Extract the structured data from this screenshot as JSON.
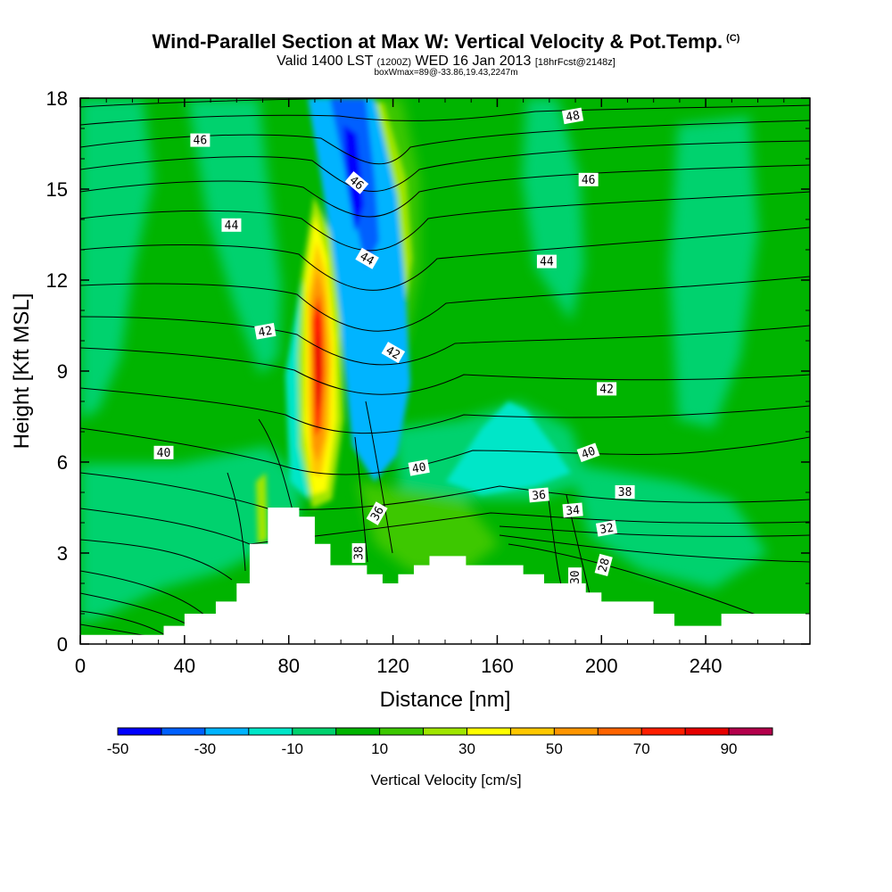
{
  "header": {
    "title": "Wind-Parallel Section at Max W: Vertical Velocity & Pot.Temp.",
    "copyright": "(C)",
    "subtitle_valid": "Valid 1400 LST",
    "subtitle_utc": "(1200Z)",
    "subtitle_date": "WED 16 Jan 2013",
    "subtitle_fcst": "[18hrFcst@2148z]",
    "subsubtitle": "boxWmax=89@-33.86,19.43,2247m"
  },
  "chart_data": {
    "type": "heatmap",
    "xlabel": "Distance [nm]",
    "ylabel": "Height [Kft MSL]",
    "xlim": [
      0,
      280
    ],
    "ylim": [
      0,
      18
    ],
    "x_ticks": [
      0,
      40,
      80,
      120,
      160,
      200,
      240
    ],
    "y_ticks": [
      0,
      3,
      6,
      9,
      12,
      15,
      18
    ],
    "colorbar": {
      "label": "Vertical Velocity [cm/s]",
      "bins": [
        -50,
        -40,
        -30,
        -20,
        -10,
        0,
        10,
        20,
        30,
        40,
        50,
        60,
        70,
        80,
        90,
        100
      ],
      "tick_labels": [
        -50,
        -30,
        -10,
        10,
        30,
        50,
        70,
        90
      ],
      "colors": [
        "#0000ff",
        "#0060ff",
        "#00b4ff",
        "#00e6c8",
        "#00d26e",
        "#00b400",
        "#3cc800",
        "#a0e600",
        "#ffff00",
        "#ffc800",
        "#ff9600",
        "#ff6400",
        "#ff1e00",
        "#e60000",
        "#b4004b"
      ]
    },
    "terrain": [
      [
        0,
        0.3
      ],
      [
        32,
        0.3
      ],
      [
        32,
        0.6
      ],
      [
        40,
        0.6
      ],
      [
        40,
        1.0
      ],
      [
        52,
        1.0
      ],
      [
        52,
        1.4
      ],
      [
        60,
        1.4
      ],
      [
        60,
        2.0
      ],
      [
        65,
        2.0
      ],
      [
        65,
        3.3
      ],
      [
        72,
        3.3
      ],
      [
        72,
        4.5
      ],
      [
        84,
        4.5
      ],
      [
        84,
        4.2
      ],
      [
        90,
        4.2
      ],
      [
        90,
        3.3
      ],
      [
        96,
        3.3
      ],
      [
        96,
        2.6
      ],
      [
        110,
        2.6
      ],
      [
        110,
        2.3
      ],
      [
        116,
        2.3
      ],
      [
        116,
        2.0
      ],
      [
        122,
        2.0
      ],
      [
        122,
        2.3
      ],
      [
        128,
        2.3
      ],
      [
        128,
        2.6
      ],
      [
        134,
        2.6
      ],
      [
        134,
        2.9
      ],
      [
        148,
        2.9
      ],
      [
        148,
        2.6
      ],
      [
        170,
        2.6
      ],
      [
        170,
        2.3
      ],
      [
        178,
        2.3
      ],
      [
        178,
        2.0
      ],
      [
        194,
        2.0
      ],
      [
        194,
        1.7
      ],
      [
        200,
        1.7
      ],
      [
        200,
        1.4
      ],
      [
        220,
        1.4
      ],
      [
        220,
        1.0
      ],
      [
        228,
        1.0
      ],
      [
        228,
        0.6
      ],
      [
        246,
        0.6
      ],
      [
        246,
        1.0
      ],
      [
        280,
        1.0
      ]
    ],
    "contour_labels": [
      {
        "value": "46",
        "x": 46,
        "y": 16.6,
        "angle": 0
      },
      {
        "value": "48",
        "x": 189,
        "y": 17.4,
        "angle": -10
      },
      {
        "value": "46",
        "x": 106,
        "y": 15.2,
        "angle": 40
      },
      {
        "value": "46",
        "x": 195,
        "y": 15.3,
        "angle": 0
      },
      {
        "value": "44",
        "x": 58,
        "y": 13.8,
        "angle": 0
      },
      {
        "value": "44",
        "x": 110,
        "y": 12.7,
        "angle": 30
      },
      {
        "value": "44",
        "x": 179,
        "y": 12.6,
        "angle": 0
      },
      {
        "value": "42",
        "x": 71,
        "y": 10.3,
        "angle": -10
      },
      {
        "value": "42",
        "x": 120,
        "y": 9.6,
        "angle": 30
      },
      {
        "value": "42",
        "x": 202,
        "y": 8.4,
        "angle": 0
      },
      {
        "value": "40",
        "x": 32,
        "y": 6.3,
        "angle": 0
      },
      {
        "value": "40",
        "x": 130,
        "y": 5.8,
        "angle": -10
      },
      {
        "value": "40",
        "x": 195,
        "y": 6.3,
        "angle": -20
      },
      {
        "value": "38",
        "x": 209,
        "y": 5.0,
        "angle": 0
      },
      {
        "value": "36",
        "x": 114,
        "y": 4.3,
        "angle": -60
      },
      {
        "value": "36",
        "x": 176,
        "y": 4.9,
        "angle": -5
      },
      {
        "value": "34",
        "x": 189,
        "y": 4.4,
        "angle": -5
      },
      {
        "value": "32",
        "x": 202,
        "y": 3.8,
        "angle": -10
      },
      {
        "value": "38",
        "x": 107,
        "y": 3.0,
        "angle": -90
      },
      {
        "value": "30",
        "x": 190,
        "y": 2.2,
        "angle": -90
      },
      {
        "value": "28",
        "x": 201,
        "y": 2.6,
        "angle": -75
      }
    ]
  }
}
